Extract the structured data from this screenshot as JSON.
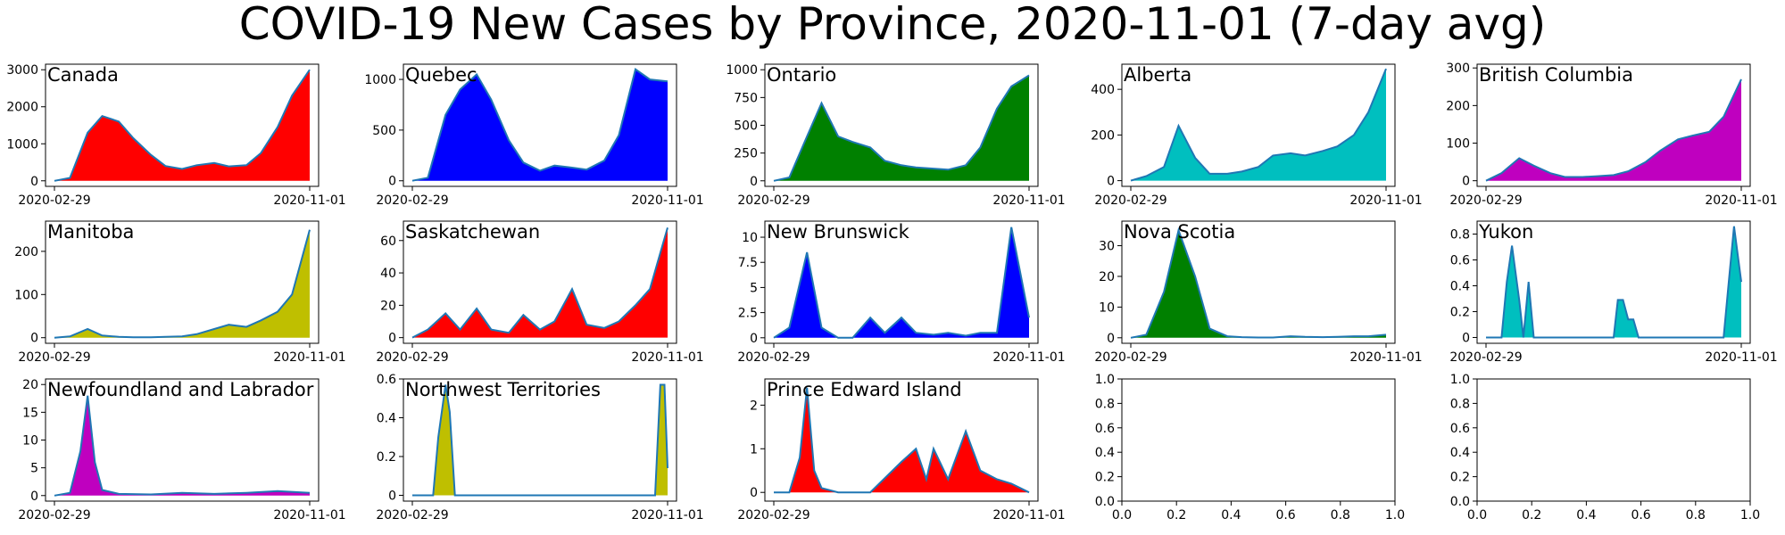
{
  "title": "COVID-19 New Cases by Province, 2020-11-01 (7-day avg)",
  "chart_data": [
    {
      "type": "area",
      "label": "Canada",
      "color": "#ff0000",
      "x_ticks": [
        "2020-02-29",
        "2020-11-01"
      ],
      "y_ticks": [
        0,
        1000,
        2000,
        3000
      ],
      "ylim": [
        -150,
        3150
      ],
      "x": [
        "2020-02-29",
        "2020-03-15",
        "2020-04-01",
        "2020-04-15",
        "2020-05-01",
        "2020-05-15",
        "2020-06-01",
        "2020-06-15",
        "2020-07-01",
        "2020-07-15",
        "2020-08-01",
        "2020-08-15",
        "2020-09-01",
        "2020-09-15",
        "2020-10-01",
        "2020-10-15",
        "2020-11-01"
      ],
      "values": [
        0,
        80,
        1300,
        1750,
        1600,
        1150,
        700,
        400,
        320,
        420,
        480,
        390,
        420,
        750,
        1450,
        2300,
        3000
      ]
    },
    {
      "type": "area",
      "label": "Quebec",
      "color": "#0000ff",
      "x_ticks": [
        "2020-02-29",
        "2020-11-01"
      ],
      "y_ticks": [
        0,
        500,
        1000
      ],
      "ylim": [
        -55,
        1150
      ],
      "x": [
        "2020-02-29",
        "2020-03-15",
        "2020-04-01",
        "2020-04-15",
        "2020-05-01",
        "2020-05-15",
        "2020-06-01",
        "2020-06-15",
        "2020-07-01",
        "2020-07-15",
        "2020-08-01",
        "2020-08-15",
        "2020-09-01",
        "2020-09-15",
        "2020-10-01",
        "2020-10-15",
        "2020-11-01"
      ],
      "values": [
        0,
        30,
        650,
        900,
        1050,
        800,
        400,
        180,
        100,
        150,
        130,
        110,
        200,
        450,
        1100,
        1000,
        980
      ]
    },
    {
      "type": "area",
      "label": "Ontario",
      "color": "#008000",
      "x_ticks": [
        "2020-02-29",
        "2020-11-01"
      ],
      "y_ticks": [
        0,
        250,
        500,
        750,
        1000
      ],
      "ylim": [
        -50,
        1050
      ],
      "x": [
        "2020-02-29",
        "2020-03-15",
        "2020-04-01",
        "2020-04-15",
        "2020-05-01",
        "2020-05-15",
        "2020-06-01",
        "2020-06-15",
        "2020-07-01",
        "2020-07-15",
        "2020-08-01",
        "2020-08-15",
        "2020-09-01",
        "2020-09-15",
        "2020-10-01",
        "2020-10-15",
        "2020-11-01"
      ],
      "values": [
        0,
        30,
        400,
        700,
        400,
        350,
        300,
        180,
        140,
        120,
        110,
        100,
        140,
        300,
        650,
        850,
        950
      ]
    },
    {
      "type": "area",
      "label": "Alberta",
      "color": "#00bfbf",
      "x_ticks": [
        "2020-02-29",
        "2020-11-01"
      ],
      "y_ticks": [
        0,
        200,
        400
      ],
      "ylim": [
        -25,
        510
      ],
      "x": [
        "2020-02-29",
        "2020-03-15",
        "2020-04-01",
        "2020-04-15",
        "2020-05-01",
        "2020-05-15",
        "2020-06-01",
        "2020-06-15",
        "2020-07-01",
        "2020-07-15",
        "2020-08-01",
        "2020-08-15",
        "2020-09-01",
        "2020-09-15",
        "2020-10-01",
        "2020-10-15",
        "2020-11-01"
      ],
      "values": [
        0,
        20,
        60,
        240,
        100,
        30,
        30,
        40,
        60,
        110,
        120,
        110,
        130,
        150,
        200,
        300,
        490
      ]
    },
    {
      "type": "area",
      "label": "British Columbia",
      "color": "#bf00bf",
      "x_ticks": [
        "2020-02-29",
        "2020-11-01"
      ],
      "y_ticks": [
        0,
        100,
        200,
        300
      ],
      "ylim": [
        -15,
        310
      ],
      "x": [
        "2020-02-29",
        "2020-03-15",
        "2020-04-01",
        "2020-04-15",
        "2020-05-01",
        "2020-05-15",
        "2020-06-01",
        "2020-06-15",
        "2020-07-01",
        "2020-07-15",
        "2020-08-01",
        "2020-08-15",
        "2020-09-01",
        "2020-09-15",
        "2020-10-01",
        "2020-10-15",
        "2020-11-01"
      ],
      "values": [
        0,
        20,
        60,
        40,
        20,
        10,
        10,
        12,
        15,
        25,
        50,
        80,
        110,
        120,
        130,
        170,
        270
      ]
    },
    {
      "type": "area",
      "label": "Manitoba",
      "color": "#bfbf00",
      "x_ticks": [
        "2020-02-29",
        "2020-11-01"
      ],
      "y_ticks": [
        0,
        100,
        200
      ],
      "ylim": [
        -13,
        270
      ],
      "x": [
        "2020-02-29",
        "2020-03-15",
        "2020-04-01",
        "2020-04-15",
        "2020-05-01",
        "2020-05-15",
        "2020-06-01",
        "2020-06-15",
        "2020-07-01",
        "2020-07-15",
        "2020-08-01",
        "2020-08-15",
        "2020-09-01",
        "2020-09-15",
        "2020-10-01",
        "2020-10-15",
        "2020-11-01"
      ],
      "values": [
        0,
        3,
        20,
        5,
        2,
        1,
        1,
        2,
        3,
        8,
        20,
        30,
        25,
        40,
        60,
        100,
        250
      ]
    },
    {
      "type": "area",
      "label": "Saskatchewan",
      "color": "#ff0000",
      "x_ticks": [
        "2020-02-29",
        "2020-11-01"
      ],
      "y_ticks": [
        0,
        20,
        40,
        60
      ],
      "ylim": [
        -3.5,
        72
      ],
      "x": [
        "2020-02-29",
        "2020-03-15",
        "2020-04-01",
        "2020-04-15",
        "2020-05-01",
        "2020-05-15",
        "2020-06-01",
        "2020-06-15",
        "2020-07-01",
        "2020-07-15",
        "2020-08-01",
        "2020-08-15",
        "2020-09-01",
        "2020-09-15",
        "2020-10-01",
        "2020-10-15",
        "2020-11-01"
      ],
      "values": [
        0,
        5,
        15,
        5,
        18,
        5,
        3,
        14,
        5,
        10,
        30,
        8,
        6,
        10,
        20,
        30,
        68
      ]
    },
    {
      "type": "area",
      "label": "New Brunswick",
      "color": "#0000ff",
      "x_ticks": [
        "2020-02-29",
        "2020-11-01"
      ],
      "y_ticks": [
        0.0,
        2.5,
        5.0,
        7.5,
        10.0
      ],
      "ylim": [
        -0.55,
        11.6
      ],
      "x": [
        "2020-02-29",
        "2020-03-15",
        "2020-04-01",
        "2020-04-15",
        "2020-05-01",
        "2020-05-15",
        "2020-06-01",
        "2020-06-15",
        "2020-07-01",
        "2020-07-15",
        "2020-08-01",
        "2020-08-15",
        "2020-09-01",
        "2020-09-15",
        "2020-10-01",
        "2020-10-15",
        "2020-11-01"
      ],
      "values": [
        0,
        1,
        8.5,
        1,
        0,
        0,
        2,
        0.5,
        2,
        0.5,
        0.3,
        0.5,
        0.2,
        0.5,
        0.5,
        11,
        2
      ]
    },
    {
      "type": "area",
      "label": "Nova Scotia",
      "color": "#008000",
      "x_ticks": [
        "2020-02-29",
        "2020-11-01"
      ],
      "y_ticks": [
        0,
        10,
        20,
        30
      ],
      "ylim": [
        -1.8,
        38
      ],
      "x": [
        "2020-02-29",
        "2020-03-15",
        "2020-04-01",
        "2020-04-15",
        "2020-05-01",
        "2020-05-15",
        "2020-06-01",
        "2020-06-15",
        "2020-07-01",
        "2020-07-15",
        "2020-08-01",
        "2020-08-15",
        "2020-09-01",
        "2020-09-15",
        "2020-10-01",
        "2020-10-15",
        "2020-11-01"
      ],
      "values": [
        0,
        1,
        15,
        35,
        20,
        3,
        0.5,
        0.2,
        0.1,
        0.1,
        0.5,
        0.3,
        0.2,
        0.3,
        0.5,
        0.5,
        1
      ]
    },
    {
      "type": "area",
      "label": "Yukon",
      "color": "#00bfbf",
      "x_ticks": [
        "2020-02-29",
        "2020-11-01"
      ],
      "y_ticks": [
        0.0,
        0.2,
        0.4,
        0.6,
        0.8
      ],
      "ylim": [
        -0.045,
        0.9
      ],
      "x": [
        "2020-02-29",
        "2020-03-15",
        "2020-03-20",
        "2020-03-25",
        "2020-04-01",
        "2020-04-05",
        "2020-04-10",
        "2020-04-15",
        "2020-05-01",
        "2020-07-01",
        "2020-07-05",
        "2020-07-10",
        "2020-07-15",
        "2020-07-20",
        "2020-07-25",
        "2020-08-01",
        "2020-10-15",
        "2020-10-20",
        "2020-10-25",
        "2020-11-01"
      ],
      "values": [
        0,
        0,
        0.43,
        0.71,
        0.29,
        0,
        0.43,
        0,
        0,
        0,
        0.29,
        0.29,
        0.14,
        0.14,
        0,
        0,
        0,
        0.43,
        0.86,
        0.43
      ]
    },
    {
      "type": "area",
      "label": "Newfoundland and Labrador",
      "color": "#bf00bf",
      "x_ticks": [
        "2020-02-29",
        "2020-11-01"
      ],
      "y_ticks": [
        0,
        5,
        10,
        15,
        20
      ],
      "ylim": [
        -1,
        21
      ],
      "x": [
        "2020-02-29",
        "2020-03-15",
        "2020-03-25",
        "2020-04-01",
        "2020-04-08",
        "2020-04-15",
        "2020-05-01",
        "2020-06-01",
        "2020-07-01",
        "2020-08-01",
        "2020-09-01",
        "2020-10-01",
        "2020-11-01"
      ],
      "values": [
        0,
        0.5,
        8,
        18,
        6,
        1,
        0.3,
        0.2,
        0.5,
        0.3,
        0.5,
        0.8,
        0.5
      ]
    },
    {
      "type": "area",
      "label": "Northwest Territories",
      "color": "#bfbf00",
      "x_ticks": [
        "2020-02-29",
        "2020-11-01"
      ],
      "y_ticks": [
        0.0,
        0.2,
        0.4,
        0.6
      ],
      "ylim": [
        -0.03,
        0.6
      ],
      "x": [
        "2020-02-29",
        "2020-03-20",
        "2020-03-25",
        "2020-04-01",
        "2020-04-05",
        "2020-04-10",
        "2020-10-20",
        "2020-10-25",
        "2020-10-29",
        "2020-11-01"
      ],
      "values": [
        0,
        0,
        0.3,
        0.57,
        0.43,
        0,
        0,
        0.57,
        0.57,
        0.14
      ]
    },
    {
      "type": "area",
      "label": "Prince Edward Island",
      "color": "#ff0000",
      "x_ticks": [
        "2020-02-29",
        "2020-11-01"
      ],
      "y_ticks": [
        0,
        1,
        2
      ],
      "ylim": [
        -0.2,
        2.6
      ],
      "x": [
        "2020-02-29",
        "2020-03-15",
        "2020-03-25",
        "2020-04-01",
        "2020-04-08",
        "2020-04-15",
        "2020-05-01",
        "2020-06-01",
        "2020-07-01",
        "2020-07-15",
        "2020-07-25",
        "2020-08-01",
        "2020-08-15",
        "2020-09-01",
        "2020-09-15",
        "2020-10-01",
        "2020-10-15",
        "2020-11-01"
      ],
      "values": [
        0,
        0,
        0.8,
        2.4,
        0.5,
        0.1,
        0,
        0,
        0.7,
        1,
        0.3,
        1,
        0.3,
        1.4,
        0.5,
        0.3,
        0.2,
        0
      ]
    },
    {
      "type": "empty",
      "label": "",
      "x_ticks": [
        "0.0",
        "0.2",
        "0.4",
        "0.6",
        "0.8",
        "1.0"
      ],
      "y_ticks": [
        "0.0",
        "0.2",
        "0.4",
        "0.6",
        "0.8",
        "1.0"
      ]
    },
    {
      "type": "empty",
      "label": "",
      "x_ticks": [
        "0.0",
        "0.2",
        "0.4",
        "0.6",
        "0.8",
        "1.0"
      ],
      "y_ticks": [
        "0.0",
        "0.2",
        "0.4",
        "0.6",
        "0.8",
        "1.0"
      ]
    }
  ]
}
